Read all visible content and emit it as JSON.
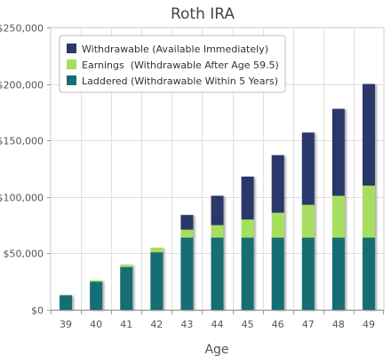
{
  "chart_data": {
    "type": "bar",
    "stacked": true,
    "title": "Roth IRA",
    "xlabel": "Age",
    "ylabel": "",
    "ylim": [
      0,
      250000
    ],
    "y_ticks": [
      0,
      50000,
      100000,
      150000,
      200000,
      250000
    ],
    "y_tick_labels": [
      "$0",
      "$50,000",
      "$100,000",
      "$150,000",
      "$200,000",
      "$250,000"
    ],
    "grid": true,
    "legend_position": "top-left",
    "categories": [
      "39",
      "40",
      "41",
      "42",
      "43",
      "44",
      "45",
      "46",
      "47",
      "48",
      "49"
    ],
    "series": [
      {
        "name": "Laddered (Withdrawable Within 5 Years)",
        "color": "#146e73",
        "values": [
          13000,
          25000,
          38000,
          51000,
          64000,
          64000,
          64000,
          64000,
          64000,
          64000,
          64000
        ]
      },
      {
        "name": "Earnings  (Withdrawable After Age 59.5)",
        "color": "#a6df5e",
        "values": [
          0,
          1000,
          2000,
          4000,
          7000,
          11000,
          16000,
          22000,
          29000,
          37000,
          46000
        ]
      },
      {
        "name": "Withdrawable (Available Immediately)",
        "color": "#2b3869",
        "values": [
          0,
          0,
          0,
          0,
          13000,
          26000,
          38000,
          51000,
          64000,
          77000,
          90000
        ]
      }
    ],
    "legend_order": [
      2,
      1,
      0
    ]
  }
}
